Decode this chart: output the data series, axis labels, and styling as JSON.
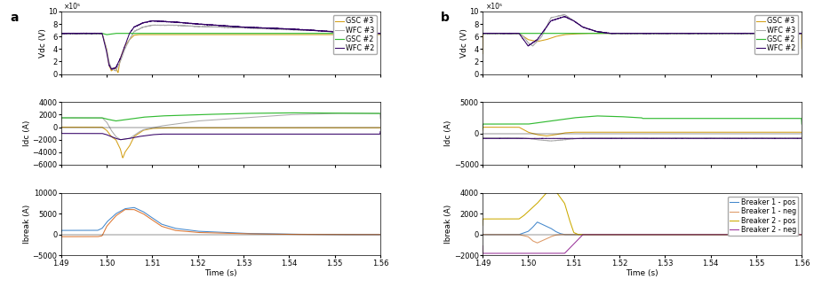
{
  "xlim": [
    1.49,
    1.56
  ],
  "xlabel": "Time (s)",
  "xticks": [
    1.49,
    1.5,
    1.51,
    1.52,
    1.53,
    1.54,
    1.55,
    1.56
  ],
  "colors": {
    "GSC3": "#d4a017",
    "WFC3": "#aaaaaa",
    "GSC2": "#33bb33",
    "WFC2": "#330066",
    "b1pos_a": "#4488cc",
    "b1neg_a": "#dd7733",
    "b1pos_b": "#4488cc",
    "b1neg_b": "#dd9966",
    "b2pos_b": "#ccaa00",
    "b2neg_b": "#993399"
  },
  "panel_a": {
    "vdc": {
      "ylim": [
        0,
        10
      ],
      "yticks": [
        0,
        2,
        4,
        6,
        8,
        10
      ],
      "ylabel": "Vdc (V)"
    },
    "idc": {
      "ylim": [
        -6000,
        4000
      ],
      "yticks": [
        -6000,
        -4000,
        -2000,
        0,
        2000,
        4000
      ],
      "ylabel": "Idc (A)"
    },
    "ibreak": {
      "ylim": [
        -5000,
        10000
      ],
      "yticks": [
        -5000,
        0,
        5000,
        10000
      ],
      "ylabel": "Ibreak (A)"
    }
  },
  "panel_b": {
    "vdc": {
      "ylim": [
        0,
        10
      ],
      "yticks": [
        0,
        2,
        4,
        6,
        8,
        10
      ],
      "ylabel": "Vdc (V)"
    },
    "idc": {
      "ylim": [
        -5000,
        5000
      ],
      "yticks": [
        -5000,
        0,
        5000
      ],
      "ylabel": "Idc (A)"
    },
    "ibreak": {
      "ylim": [
        -2000,
        4000
      ],
      "yticks": [
        -2000,
        0,
        2000,
        4000
      ],
      "ylabel": "Ibreak (A)"
    }
  }
}
